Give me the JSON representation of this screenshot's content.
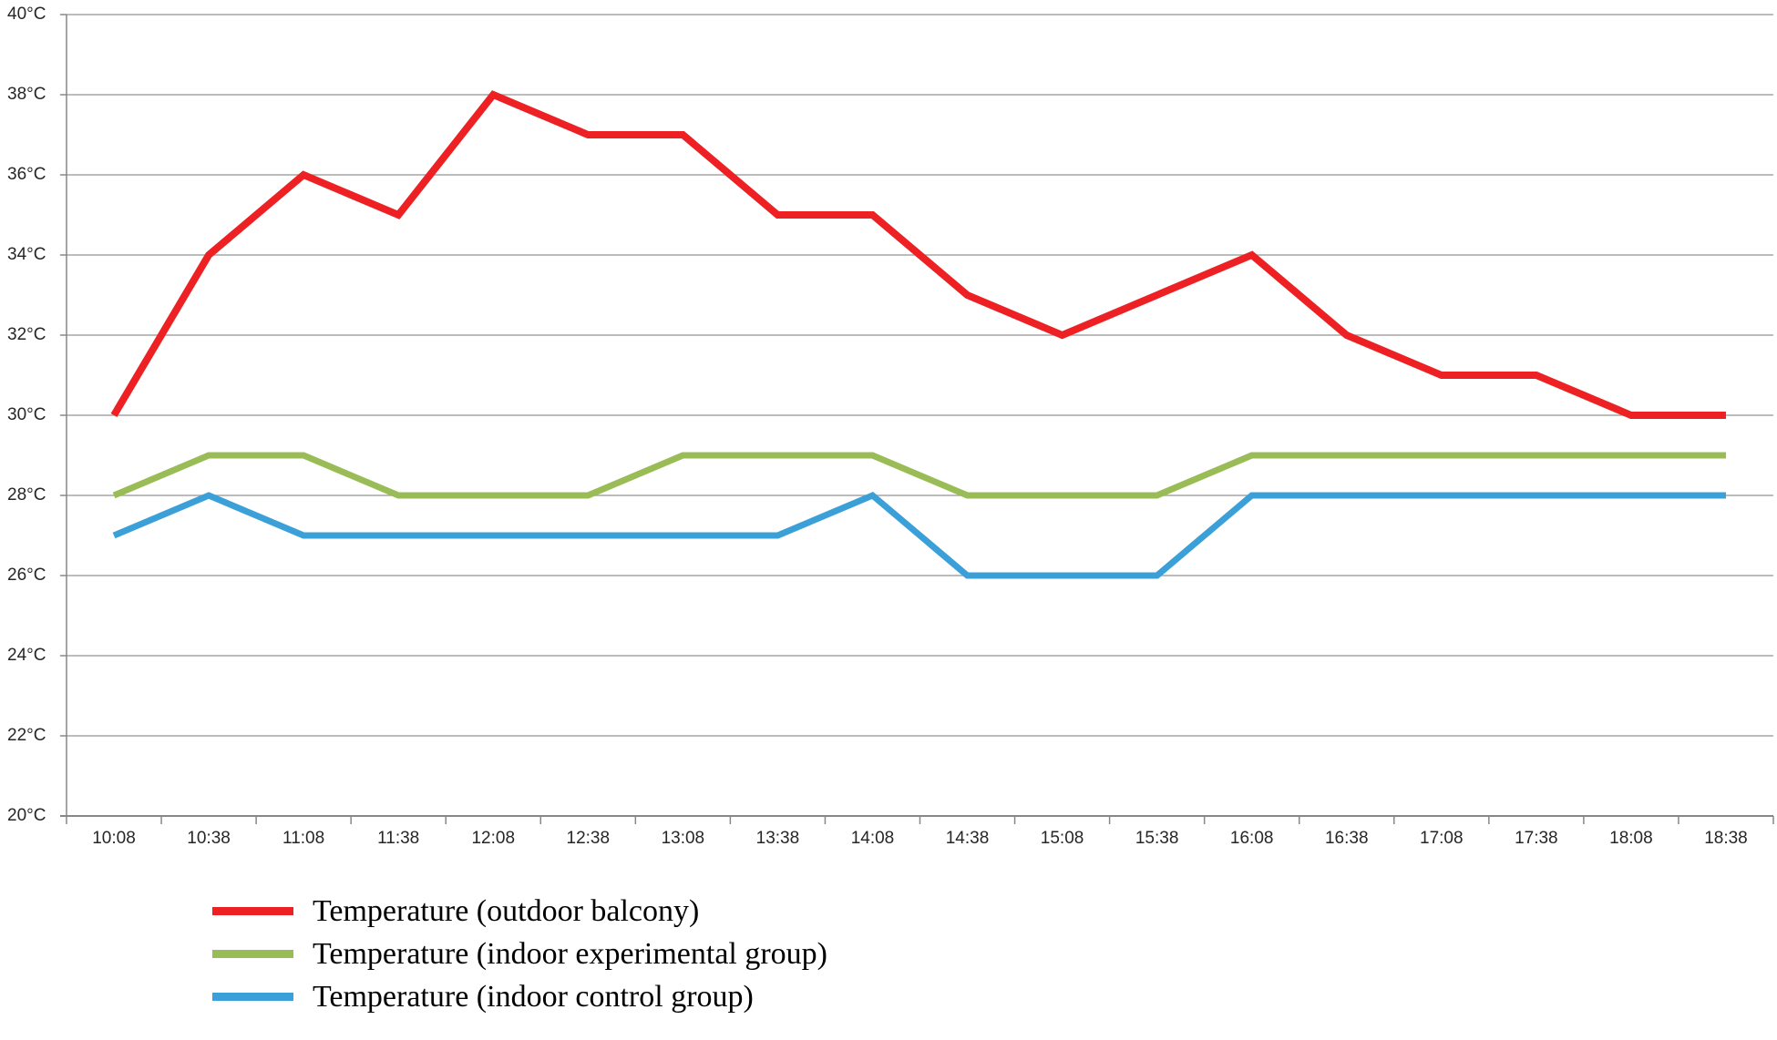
{
  "chart_data": {
    "type": "line",
    "x": [
      "10:08",
      "10:38",
      "11:08",
      "11:38",
      "12:08",
      "12:38",
      "13:08",
      "13:38",
      "14:08",
      "14:38",
      "15:08",
      "15:38",
      "16:08",
      "16:38",
      "17:08",
      "17:38",
      "18:08",
      "18:38"
    ],
    "series": [
      {
        "name": "Temperature (outdoor balcony)",
        "color": "#ed2024",
        "stroke_width": 8,
        "values": [
          30,
          34,
          36,
          35,
          38,
          37,
          37,
          35,
          35,
          33,
          32,
          33,
          34,
          32,
          31,
          31,
          30,
          30
        ]
      },
      {
        "name": "Temperature (indoor experimental group)",
        "color": "#9abc56",
        "stroke_width": 7,
        "values": [
          28,
          29,
          29,
          28,
          28,
          28,
          29,
          29,
          29,
          28,
          28,
          28,
          29,
          29,
          29,
          29,
          29,
          29
        ]
      },
      {
        "name": "Temperature (indoor control group)",
        "color": "#3ca0d8",
        "stroke_width": 7,
        "values": [
          27,
          28,
          27,
          27,
          27,
          27,
          27,
          27,
          28,
          26,
          26,
          26,
          28,
          28,
          28,
          28,
          28,
          28
        ]
      }
    ],
    "ylim": [
      20,
      40
    ],
    "y_step": 2,
    "y_unit": "°C",
    "y_tick_labels": [
      "40°C",
      "38°C",
      "36°C",
      "34°C",
      "32°C",
      "30°C",
      "28°C",
      "26°C",
      "24°C",
      "22°C",
      "20°C"
    ],
    "grid": true,
    "legend_position": "bottom-left",
    "title": "",
    "xlabel": "",
    "ylabel": ""
  },
  "colors": {
    "background": "#ffffff",
    "gridline": "#a6a6a6",
    "axis": "#878787",
    "tick_text": "#262626",
    "legend_text": "#000000"
  }
}
